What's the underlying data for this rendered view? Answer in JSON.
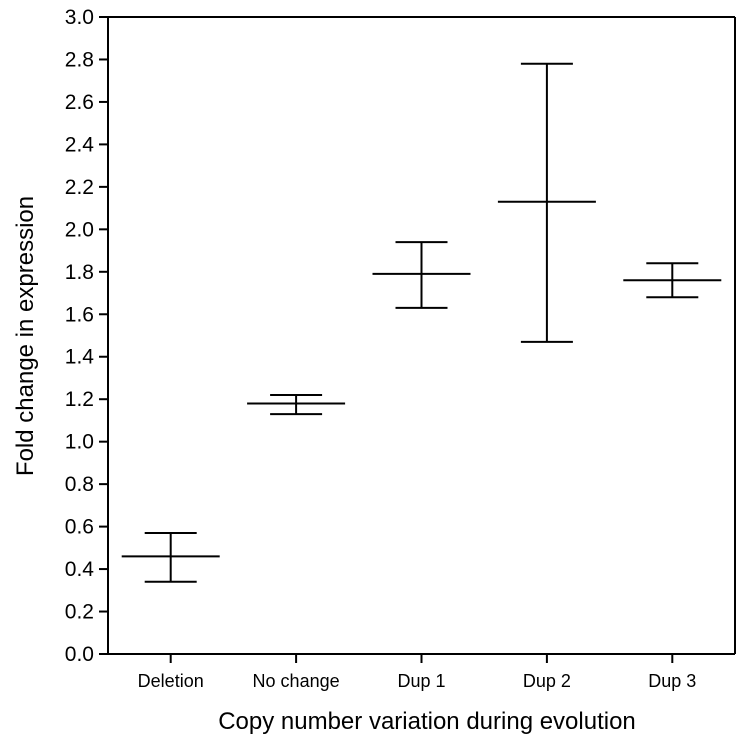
{
  "chart_data": {
    "type": "errorbar",
    "categories": [
      "Deletion",
      "No change",
      "Dup 1",
      "Dup 2",
      "Dup 3"
    ],
    "series": [
      {
        "mean": [
          0.46,
          1.18,
          1.79,
          2.13,
          1.76
        ],
        "lower": [
          0.34,
          1.13,
          1.63,
          1.47,
          1.68
        ],
        "upper": [
          0.57,
          1.22,
          1.94,
          2.78,
          1.84
        ]
      }
    ],
    "xlabel": "Copy number variation during evolution",
    "ylabel": "Fold change in expression",
    "ylim": [
      0.0,
      3.0
    ],
    "yticks": [
      "0.0",
      "0.2",
      "0.4",
      "0.6",
      "0.8",
      "1.0",
      "1.2",
      "1.4",
      "1.6",
      "1.8",
      "2.0",
      "2.2",
      "2.4",
      "2.6",
      "2.8",
      "3.0"
    ],
    "grid": false,
    "colors": {
      "axis": "#000000",
      "marks": "#000000"
    }
  }
}
